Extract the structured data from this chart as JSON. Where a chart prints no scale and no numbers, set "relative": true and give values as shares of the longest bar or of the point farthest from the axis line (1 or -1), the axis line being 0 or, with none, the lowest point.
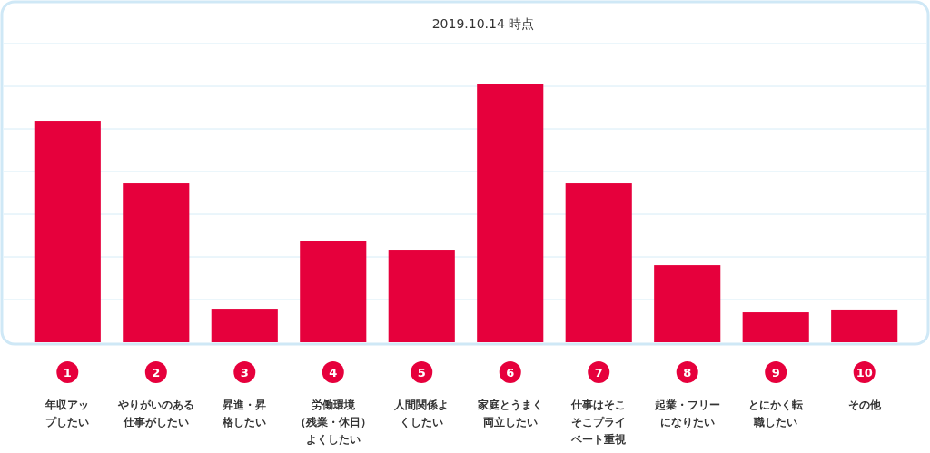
{
  "chart_data": {
    "type": "bar",
    "subtitle": "2019.10.14 時点",
    "relative": true,
    "grid": true,
    "color": "#e6003c",
    "categories": [
      "年収アップしたい",
      "やりがいのある仕事がしたい",
      "昇進・昇格したい",
      "労働環境（残業・休日）よくしたい",
      "人間関係よくしたい",
      "家庭とうまく両立したい",
      "仕事はそこそこプライベート重視",
      "起業・フリーになりたい",
      "とにかく転職したい",
      "その他"
    ],
    "annotations": [
      "1",
      "2",
      "3",
      "4",
      "5",
      "6",
      "7",
      "8",
      "9",
      "10"
    ],
    "values": [
      0.859,
      0.616,
      0.13,
      0.394,
      0.359,
      1,
      0.616,
      0.299,
      0.116,
      0.127
    ]
  }
}
